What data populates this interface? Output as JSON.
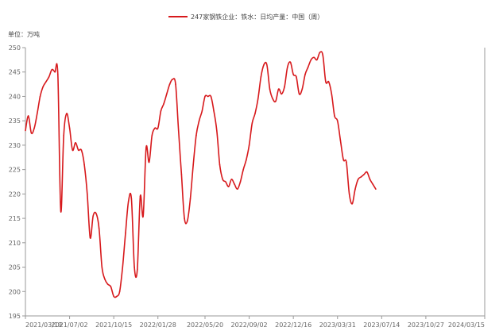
{
  "chart_data": {
    "type": "line",
    "legend": "247家钢铁企业：铁水：日均产量：中国（周）",
    "unit": "单位：万吨",
    "series": [
      {
        "name": "247家钢铁企业：铁水：日均产量：中国（周）",
        "color": "#d7191c",
        "points": [
          [
            "2021/03/19",
            233.0
          ],
          [
            "2021/03/26",
            236.0
          ],
          [
            "2021/04/02",
            232.5
          ],
          [
            "2021/04/09",
            233.5
          ],
          [
            "2021/04/16",
            236.5
          ],
          [
            "2021/04/23",
            240.0
          ],
          [
            "2021/04/30",
            242.0
          ],
          [
            "2021/05/07",
            243.0
          ],
          [
            "2021/05/14",
            244.0
          ],
          [
            "2021/05/21",
            245.5
          ],
          [
            "2021/05/28",
            245.0
          ],
          [
            "2021/06/04",
            244.5
          ],
          [
            "2021/06/11",
            216.5
          ],
          [
            "2021/06/18",
            232.0
          ],
          [
            "2021/06/25",
            236.5
          ],
          [
            "2021/07/02",
            233.5
          ],
          [
            "2021/07/09",
            229.0
          ],
          [
            "2021/07/16",
            230.5
          ],
          [
            "2021/07/23",
            229.0
          ],
          [
            "2021/07/30",
            229.0
          ],
          [
            "2021/08/06",
            226.0
          ],
          [
            "2021/08/13",
            220.0
          ],
          [
            "2021/08/20",
            211.0
          ],
          [
            "2021/08/27",
            215.5
          ],
          [
            "2021/09/03",
            216.0
          ],
          [
            "2021/09/10",
            213.0
          ],
          [
            "2021/09/17",
            205.0
          ],
          [
            "2021/09/24",
            202.5
          ],
          [
            "2021/10/01",
            201.5
          ],
          [
            "2021/10/08",
            201.0
          ],
          [
            "2021/10/15",
            199.0
          ],
          [
            "2021/10/22",
            199.0
          ],
          [
            "2021/10/29",
            200.0
          ],
          [
            "2021/11/05",
            205.0
          ],
          [
            "2021/11/12",
            212.0
          ],
          [
            "2021/11/19",
            218.5
          ],
          [
            "2021/11/26",
            219.0
          ],
          [
            "2021/12/03",
            205.0
          ],
          [
            "2021/12/10",
            204.5
          ],
          [
            "2021/12/17",
            219.5
          ],
          [
            "2021/12/24",
            215.5
          ],
          [
            "2021/12/31",
            229.5
          ],
          [
            "2022/01/07",
            226.5
          ],
          [
            "2022/01/14",
            232.0
          ],
          [
            "2022/01/21",
            233.5
          ],
          [
            "2022/01/28",
            233.5
          ],
          [
            "2022/02/04",
            237.0
          ],
          [
            "2022/02/11",
            238.5
          ],
          [
            "2022/02/18",
            240.5
          ],
          [
            "2022/02/25",
            242.5
          ],
          [
            "2022/03/04",
            243.5
          ],
          [
            "2022/03/11",
            242.5
          ],
          [
            "2022/03/18",
            233.0
          ],
          [
            "2022/03/25",
            224.0
          ],
          [
            "2022/04/01",
            215.0
          ],
          [
            "2022/04/08",
            214.5
          ],
          [
            "2022/04/15",
            219.0
          ],
          [
            "2022/04/22",
            226.0
          ],
          [
            "2022/04/29",
            232.0
          ],
          [
            "2022/05/06",
            235.0
          ],
          [
            "2022/05/13",
            237.0
          ],
          [
            "2022/05/20",
            240.0
          ],
          [
            "2022/05/27",
            240.0
          ],
          [
            "2022/06/03",
            240.0
          ],
          [
            "2022/06/10",
            237.0
          ],
          [
            "2022/06/17",
            233.0
          ],
          [
            "2022/06/24",
            226.0
          ],
          [
            "2022/07/01",
            223.0
          ],
          [
            "2022/07/08",
            222.5
          ],
          [
            "2022/07/15",
            221.5
          ],
          [
            "2022/07/22",
            223.0
          ],
          [
            "2022/07/29",
            222.0
          ],
          [
            "2022/08/05",
            221.0
          ],
          [
            "2022/08/12",
            222.5
          ],
          [
            "2022/08/19",
            225.0
          ],
          [
            "2022/08/26",
            227.0
          ],
          [
            "2022/09/02",
            230.0
          ],
          [
            "2022/09/09",
            234.5
          ],
          [
            "2022/09/16",
            236.5
          ],
          [
            "2022/09/23",
            239.5
          ],
          [
            "2022/09/30",
            244.0
          ],
          [
            "2022/10/07",
            246.5
          ],
          [
            "2022/10/14",
            246.5
          ],
          [
            "2022/10/21",
            241.5
          ],
          [
            "2022/10/28",
            239.5
          ],
          [
            "2022/11/04",
            239.0
          ],
          [
            "2022/11/11",
            241.5
          ],
          [
            "2022/11/18",
            240.5
          ],
          [
            "2022/11/25",
            242.0
          ],
          [
            "2022/12/02",
            246.0
          ],
          [
            "2022/12/09",
            247.0
          ],
          [
            "2022/12/16",
            244.5
          ],
          [
            "2022/12/23",
            244.0
          ],
          [
            "2022/12/30",
            240.5
          ],
          [
            "2023/01/06",
            241.5
          ],
          [
            "2023/01/13",
            244.5
          ],
          [
            "2023/01/20",
            246.0
          ],
          [
            "2023/01/27",
            247.5
          ],
          [
            "2023/02/03",
            248.0
          ],
          [
            "2023/02/10",
            247.5
          ],
          [
            "2023/02/17",
            249.0
          ],
          [
            "2023/02/24",
            248.5
          ],
          [
            "2023/03/03",
            243.0
          ],
          [
            "2023/03/10",
            243.0
          ],
          [
            "2023/03/17",
            240.5
          ],
          [
            "2023/03/24",
            236.0
          ],
          [
            "2023/03/31",
            235.0
          ],
          [
            "2023/04/07",
            231.0
          ],
          [
            "2023/04/14",
            227.0
          ],
          [
            "2023/04/21",
            226.5
          ],
          [
            "2023/04/28",
            220.0
          ],
          [
            "2023/05/05",
            218.0
          ],
          [
            "2023/05/12",
            221.0
          ],
          [
            "2023/05/19",
            223.0
          ],
          [
            "2023/05/26",
            223.5
          ],
          [
            "2023/06/02",
            224.0
          ],
          [
            "2023/06/09",
            224.5
          ],
          [
            "2023/06/16",
            223.0
          ],
          [
            "2023/06/23",
            222.0
          ],
          [
            "2023/06/30",
            221.0
          ]
        ]
      }
    ],
    "x_ticks": [
      "2021/03/19",
      "2021/07/02",
      "2021/10/15",
      "2022/01/28",
      "2022/05/20",
      "2022/09/02",
      "2022/12/16",
      "2023/03/31",
      "2023/07/14",
      "2023/10/27",
      "2024/03/15"
    ],
    "y_ticks": [
      195,
      200,
      205,
      210,
      215,
      220,
      225,
      230,
      235,
      240,
      245,
      250
    ],
    "ylim": [
      195,
      250
    ],
    "grid": false,
    "legend_position": "top-center"
  }
}
